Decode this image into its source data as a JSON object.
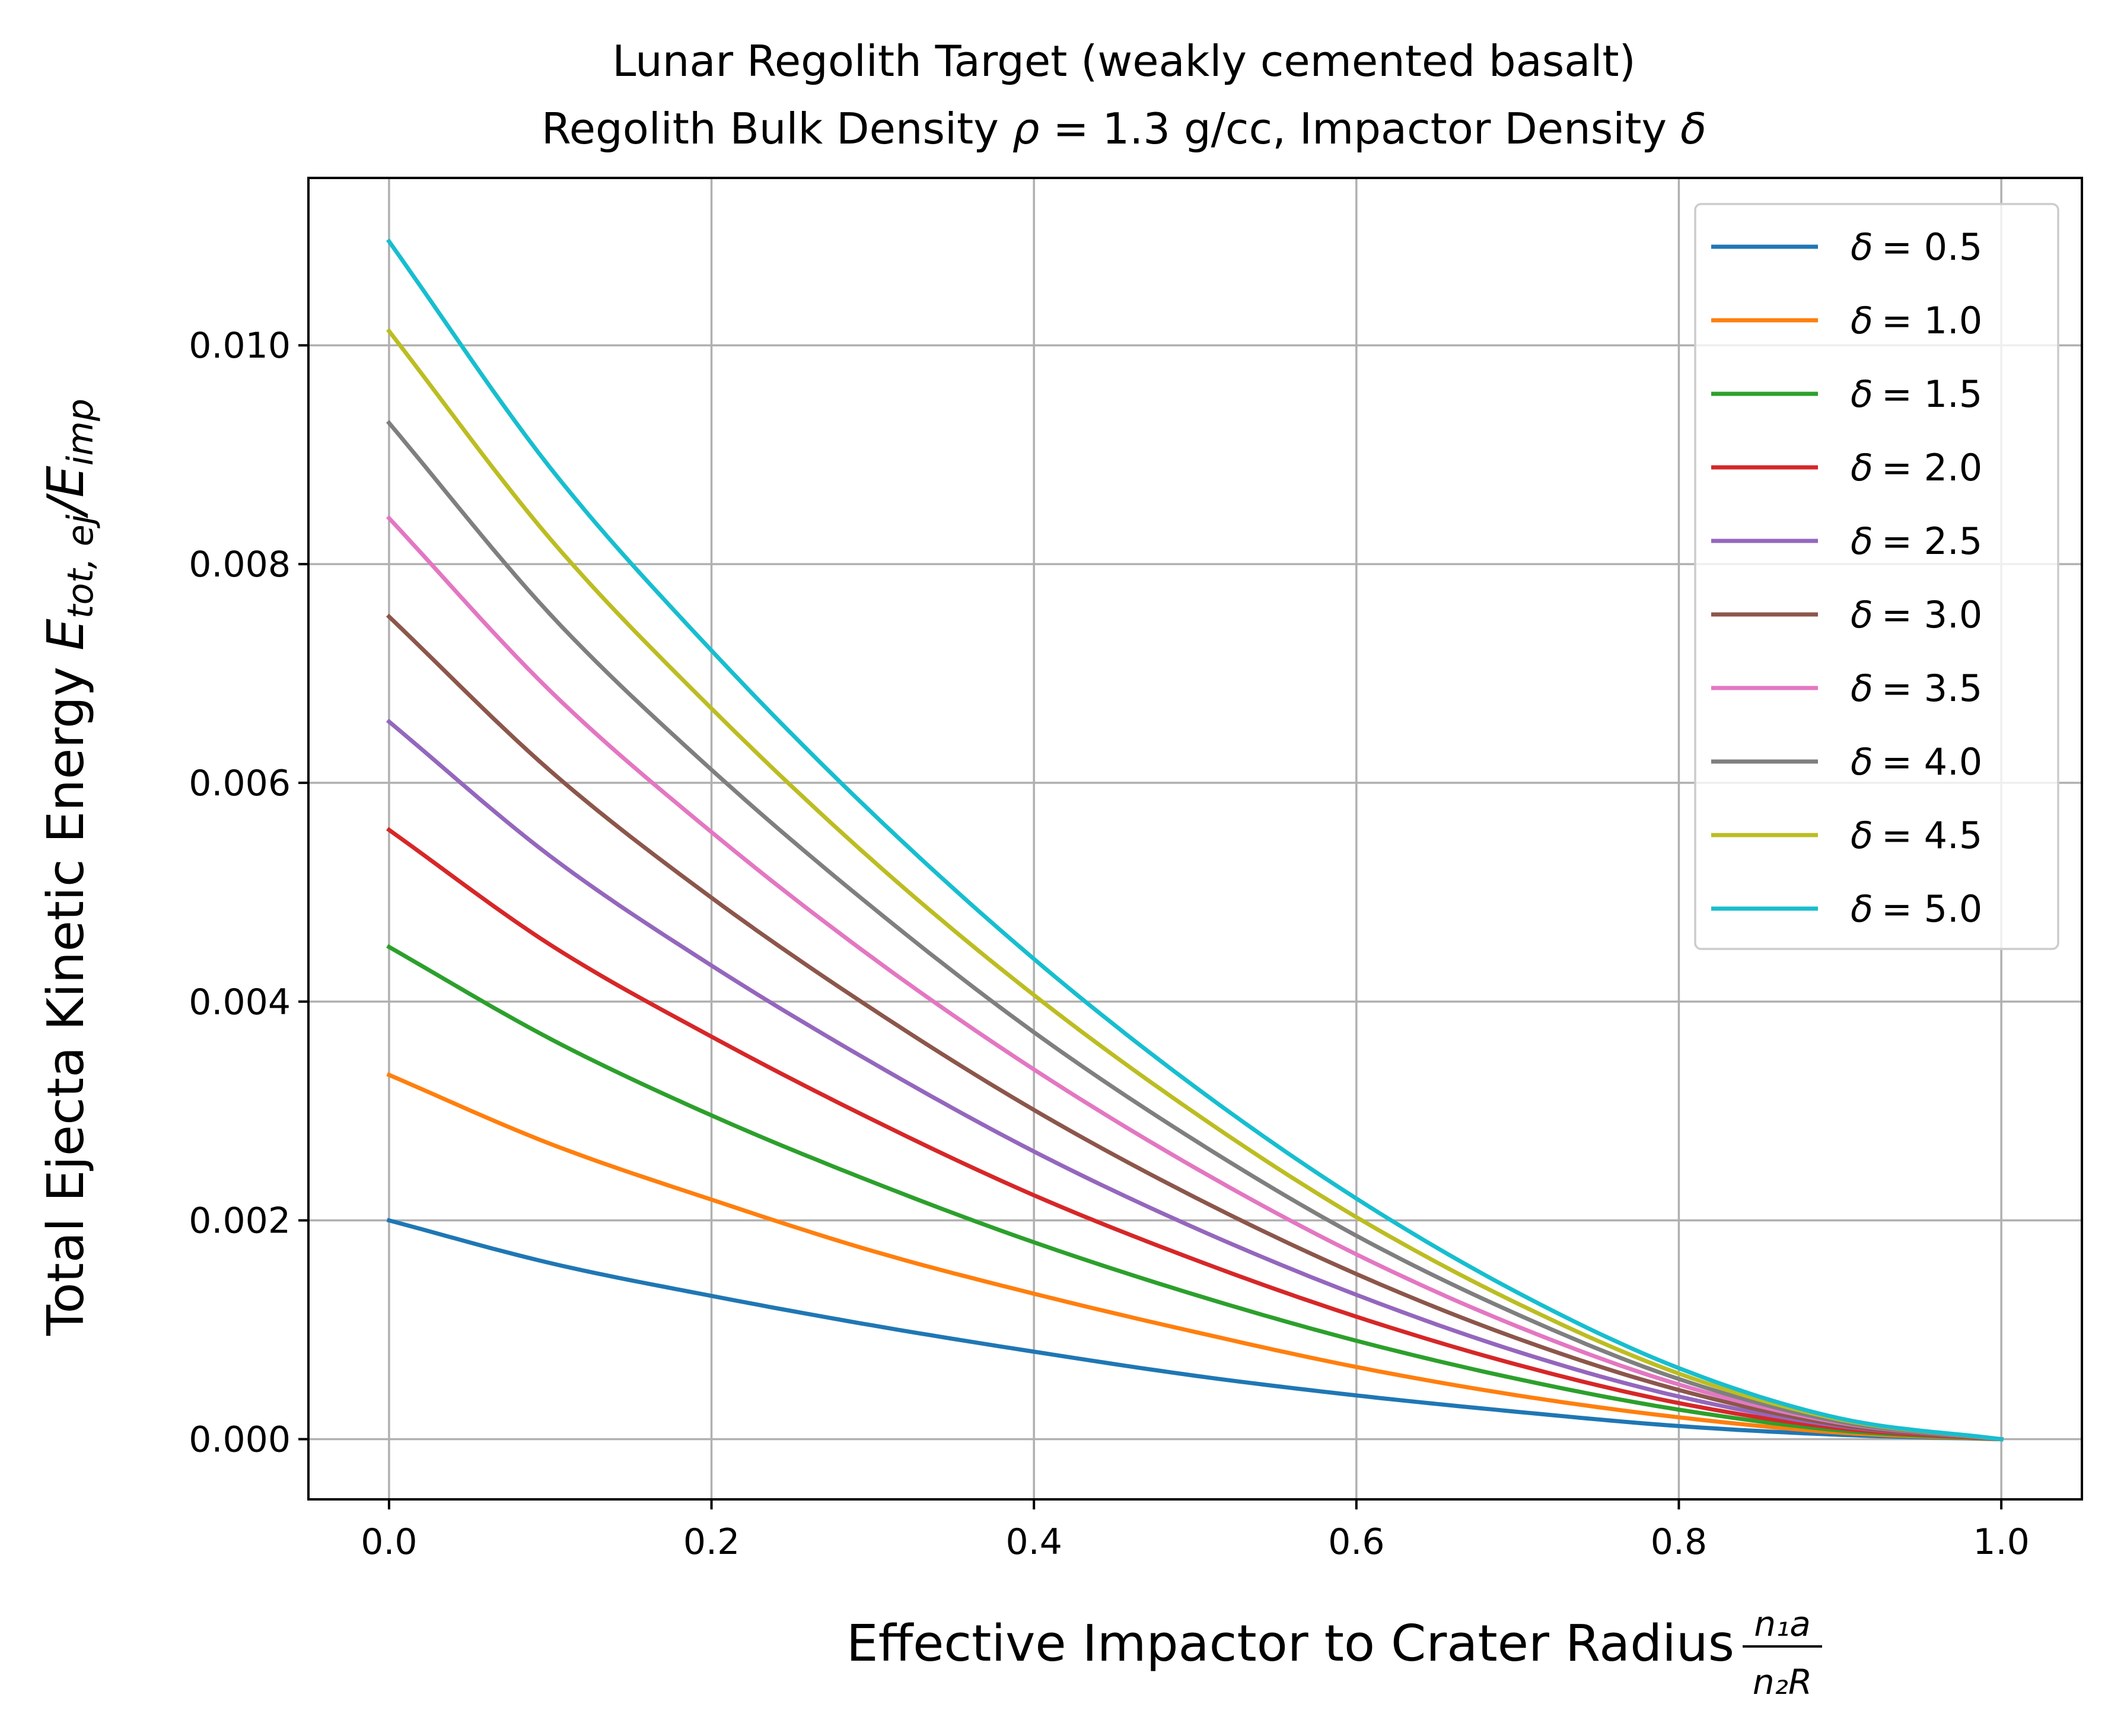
{
  "chart_data": {
    "type": "line",
    "title": {
      "line1": "Lunar Regolith Target (weakly cemented basalt)",
      "line2_prefix": "Regolith Bulk Density ",
      "line2_rho": "ρ",
      "line2_mid": " = 1.3 g/cc, Impactor Density ",
      "line2_delta": "δ"
    },
    "xlabel": {
      "text": "Effective Impactor to Crater Radius ",
      "frac_num": "n₁a",
      "frac_den": "n₂R"
    },
    "ylabel": {
      "text": "Total Ejecta Kinetic Energy ",
      "E1": "E",
      "sub1": "tot, ej",
      "slash": "/",
      "E2": "E",
      "sub2": "imp"
    },
    "xlim": [
      -0.05,
      1.05
    ],
    "ylim": [
      -0.00055,
      0.01153
    ],
    "x_ticks": [
      {
        "value": 0.0,
        "label": "0.0"
      },
      {
        "value": 0.2,
        "label": "0.2"
      },
      {
        "value": 0.4,
        "label": "0.4"
      },
      {
        "value": 0.6,
        "label": "0.6"
      },
      {
        "value": 0.8,
        "label": "0.8"
      },
      {
        "value": 1.0,
        "label": "1.0"
      }
    ],
    "y_ticks": [
      {
        "value": 0.0,
        "label": "0.000"
      },
      {
        "value": 0.002,
        "label": "0.002"
      },
      {
        "value": 0.004,
        "label": "0.004"
      },
      {
        "value": 0.006,
        "label": "0.006"
      },
      {
        "value": 0.008,
        "label": "0.008"
      },
      {
        "value": 0.01,
        "label": "0.010"
      }
    ],
    "grid": true,
    "legend_position": "top-right",
    "x": [
      0.0,
      0.1,
      0.2,
      0.3,
      0.4,
      0.5,
      0.6,
      0.7,
      0.8,
      0.9,
      1.0
    ],
    "series": [
      {
        "name": "δ =  0.5",
        "symbol": "δ",
        "value_label": "=  0.5",
        "color": "#1f77b4",
        "values": [
          0.002,
          0.00161,
          0.00131,
          0.00104,
          0.0008,
          0.00058,
          0.0004,
          0.00025,
          0.00012,
          4e-05,
          0.0
        ]
      },
      {
        "name": "δ =  1.0",
        "symbol": "δ",
        "value_label": "=  1.0",
        "color": "#ff7f0e",
        "values": [
          0.00333,
          0.0027,
          0.00219,
          0.00172,
          0.00133,
          0.00098,
          0.00066,
          0.0004,
          0.0002,
          6e-05,
          0.0
        ]
      },
      {
        "name": "δ =  1.5",
        "symbol": "δ",
        "value_label": "=  1.5",
        "color": "#2ca02c",
        "values": [
          0.0045,
          0.00366,
          0.00296,
          0.00235,
          0.0018,
          0.00132,
          0.0009,
          0.00055,
          0.00027,
          8e-05,
          0.0
        ]
      },
      {
        "name": "δ =  2.0",
        "symbol": "δ",
        "value_label": "=  2.0",
        "color": "#d62728",
        "values": [
          0.00557,
          0.00452,
          0.00368,
          0.00292,
          0.00223,
          0.00164,
          0.00112,
          0.00068,
          0.00033,
          0.0001,
          0.0
        ]
      },
      {
        "name": "δ =  2.5",
        "symbol": "δ",
        "value_label": "=  2.5",
        "color": "#9467bd",
        "values": [
          0.00656,
          0.00533,
          0.00433,
          0.00344,
          0.00263,
          0.00193,
          0.00132,
          0.0008,
          0.00039,
          0.00012,
          0.0
        ]
      },
      {
        "name": "δ =  3.0",
        "symbol": "δ",
        "value_label": "=  3.0",
        "color": "#8c564b",
        "values": [
          0.00752,
          0.00611,
          0.00495,
          0.00393,
          0.00301,
          0.00221,
          0.00151,
          0.00092,
          0.00045,
          0.00013,
          0.0
        ]
      },
      {
        "name": "δ =  3.5",
        "symbol": "δ",
        "value_label": "=  3.5",
        "color": "#e377c2",
        "values": [
          0.00842,
          0.00684,
          0.00555,
          0.0044,
          0.00338,
          0.00248,
          0.00169,
          0.00103,
          0.0005,
          0.00015,
          0.0
        ]
      },
      {
        "name": "δ =  4.0",
        "symbol": "δ",
        "value_label": "=  4.0",
        "color": "#7f7f7f",
        "values": [
          0.00929,
          0.00754,
          0.00612,
          0.00486,
          0.00372,
          0.00273,
          0.00186,
          0.00114,
          0.00055,
          0.00016,
          0.0
        ]
      },
      {
        "name": "δ =  4.5",
        "symbol": "δ",
        "value_label": "=  4.5",
        "color": "#bcbd22",
        "values": [
          0.01013,
          0.00823,
          0.00668,
          0.00529,
          0.00406,
          0.00298,
          0.00203,
          0.00124,
          0.0006,
          0.00018,
          0.0
        ]
      },
      {
        "name": "δ =  5.0",
        "symbol": "δ",
        "value_label": "=  5.0",
        "color": "#17becf",
        "values": [
          0.01095,
          0.00888,
          0.00721,
          0.00572,
          0.00439,
          0.00322,
          0.0022,
          0.00134,
          0.00065,
          0.00019,
          0.0
        ]
      }
    ]
  }
}
